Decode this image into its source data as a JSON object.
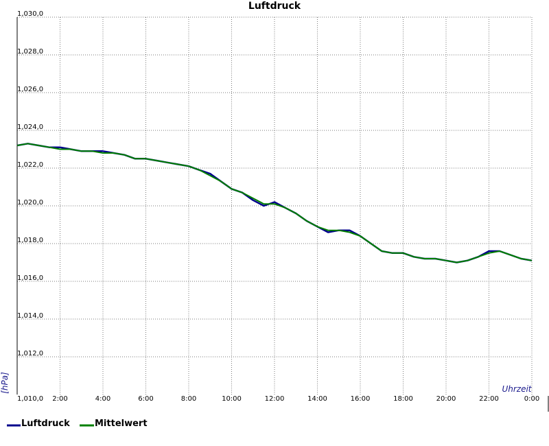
{
  "chart_data": {
    "type": "line",
    "title": "Luftdruck",
    "xlabel": "Uhrzeit",
    "ylabel": "[hPa]",
    "xlim": [
      0,
      24
    ],
    "ylim": [
      1010,
      1030
    ],
    "grid": true,
    "legend_position": "bottom-left",
    "x_ticks": [
      {
        "value": 2,
        "label": "2:00"
      },
      {
        "value": 4,
        "label": "4:00"
      },
      {
        "value": 6,
        "label": "6:00"
      },
      {
        "value": 8,
        "label": "8:00"
      },
      {
        "value": 10,
        "label": "10:00"
      },
      {
        "value": 12,
        "label": "12:00"
      },
      {
        "value": 14,
        "label": "14:00"
      },
      {
        "value": 16,
        "label": "16:00"
      },
      {
        "value": 18,
        "label": "18:00"
      },
      {
        "value": 20,
        "label": "20:00"
      },
      {
        "value": 22,
        "label": "22:00"
      },
      {
        "value": 24,
        "label": "0:00"
      }
    ],
    "y_ticks": [
      {
        "value": 1010,
        "label": "1,010,0"
      },
      {
        "value": 1012,
        "label": "1,012,0"
      },
      {
        "value": 1014,
        "label": "1,014,0"
      },
      {
        "value": 1016,
        "label": "1,016,0"
      },
      {
        "value": 1018,
        "label": "1,018,0"
      },
      {
        "value": 1020,
        "label": "1,020,0"
      },
      {
        "value": 1022,
        "label": "1,022,0"
      },
      {
        "value": 1024,
        "label": "1,024,0"
      },
      {
        "value": 1026,
        "label": "1,026,0"
      },
      {
        "value": 1028,
        "label": "1,028,0"
      },
      {
        "value": 1030,
        "label": "1,030,0"
      }
    ],
    "series": [
      {
        "name": "Luftdruck",
        "color": "#00008b",
        "x": [
          0,
          0.5,
          1.0,
          1.5,
          2.0,
          2.5,
          3.0,
          3.5,
          4.0,
          4.5,
          5.0,
          5.5,
          6.0,
          6.5,
          7.0,
          7.5,
          8.0,
          8.5,
          9.0,
          9.5,
          10.0,
          10.5,
          11.0,
          11.5,
          12.0,
          12.5,
          13.0,
          13.5,
          14.0,
          14.5,
          15.0,
          15.5,
          16.0,
          16.5,
          17.0,
          17.5,
          18.0,
          18.5,
          19.0,
          19.5,
          20.0,
          20.5,
          21.0,
          21.5,
          22.0,
          22.5,
          23.0,
          23.5,
          24.0
        ],
        "values": [
          1023.2,
          1023.3,
          1023.2,
          1023.1,
          1023.1,
          1023.0,
          1022.9,
          1022.9,
          1022.9,
          1022.8,
          1022.7,
          1022.5,
          1022.5,
          1022.4,
          1022.3,
          1022.2,
          1022.1,
          1021.9,
          1021.7,
          1021.3,
          1020.9,
          1020.7,
          1020.3,
          1020.0,
          1020.2,
          1019.9,
          1019.6,
          1019.2,
          1018.9,
          1018.6,
          1018.7,
          1018.7,
          1018.4,
          1018.0,
          1017.6,
          1017.5,
          1017.5,
          1017.3,
          1017.2,
          1017.2,
          1017.1,
          1017.0,
          1017.1,
          1017.3,
          1017.6,
          1017.6,
          1017.4,
          1017.2,
          1017.1
        ]
      },
      {
        "name": "Mittelwert",
        "color": "#008000",
        "x": [
          0,
          0.5,
          1.0,
          1.5,
          2.0,
          2.5,
          3.0,
          3.5,
          4.0,
          4.5,
          5.0,
          5.5,
          6.0,
          6.5,
          7.0,
          7.5,
          8.0,
          8.5,
          9.0,
          9.5,
          10.0,
          10.5,
          11.0,
          11.5,
          12.0,
          12.5,
          13.0,
          13.5,
          14.0,
          14.5,
          15.0,
          15.5,
          16.0,
          16.5,
          17.0,
          17.5,
          18.0,
          18.5,
          19.0,
          19.5,
          20.0,
          20.5,
          21.0,
          21.5,
          22.0,
          22.5,
          23.0,
          23.5,
          24.0
        ],
        "values": [
          1023.2,
          1023.3,
          1023.2,
          1023.1,
          1023.0,
          1023.0,
          1022.9,
          1022.9,
          1022.8,
          1022.8,
          1022.7,
          1022.5,
          1022.5,
          1022.4,
          1022.3,
          1022.2,
          1022.1,
          1021.9,
          1021.6,
          1021.3,
          1020.9,
          1020.7,
          1020.4,
          1020.1,
          1020.1,
          1019.9,
          1019.6,
          1019.2,
          1018.9,
          1018.7,
          1018.7,
          1018.6,
          1018.4,
          1018.0,
          1017.6,
          1017.5,
          1017.5,
          1017.3,
          1017.2,
          1017.2,
          1017.1,
          1017.0,
          1017.1,
          1017.3,
          1017.5,
          1017.6,
          1017.4,
          1017.2,
          1017.1
        ]
      }
    ]
  }
}
